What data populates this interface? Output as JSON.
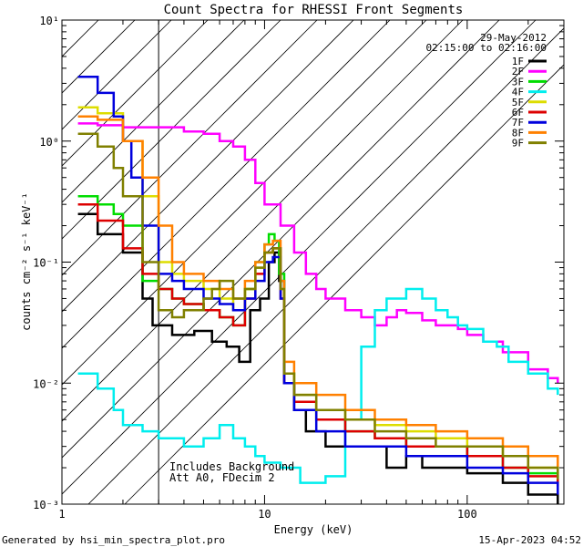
{
  "chart_data": {
    "type": "line",
    "title": "Count Spectra for RHESSI Front Segments",
    "xlabel": "Energy (keV)",
    "ylabel": "counts cm⁻² s⁻¹ keV⁻¹",
    "xscale": "log",
    "yscale": "log",
    "xlim": [
      1,
      300
    ],
    "ylim": [
      0.001,
      10
    ],
    "xticks": [
      {
        "value": 1,
        "label": "1"
      },
      {
        "value": 10,
        "label": "10"
      },
      {
        "value": 100,
        "label": "100"
      }
    ],
    "yticks": [
      {
        "value": 10,
        "label": "10¹"
      },
      {
        "value": 1,
        "label": "10⁰"
      },
      {
        "value": 0.1,
        "label": "10⁻¹"
      },
      {
        "value": 0.01,
        "label": "10⁻²"
      },
      {
        "value": 0.001,
        "label": "10⁻³"
      }
    ],
    "date": "29-May-2012",
    "time_range": "02:15:00 to 02:16:00",
    "notes": [
      "Includes Background",
      "Att A0, FDecim 2"
    ],
    "hatched_region_upper_kev": 3,
    "footer_left": "Generated by hsi_min_spectra_plot.pro",
    "footer_right": "15-Apr-2023 04:52",
    "series": [
      {
        "name": "1F",
        "color": "#000000",
        "points": [
          [
            1.2,
            0.25
          ],
          [
            1.5,
            0.17
          ],
          [
            2.0,
            0.12
          ],
          [
            2.5,
            0.05
          ],
          [
            2.8,
            0.03
          ],
          [
            3.5,
            0.025
          ],
          [
            4.5,
            0.027
          ],
          [
            5.5,
            0.022
          ],
          [
            6.5,
            0.02
          ],
          [
            7.5,
            0.015
          ],
          [
            8.5,
            0.04
          ],
          [
            9.5,
            0.05
          ],
          [
            10.5,
            0.1
          ],
          [
            11.2,
            0.12
          ],
          [
            11.8,
            0.07
          ],
          [
            12.5,
            0.01
          ],
          [
            14,
            0.006
          ],
          [
            16,
            0.004
          ],
          [
            20,
            0.003
          ],
          [
            30,
            0.003
          ],
          [
            40,
            0.002
          ],
          [
            50,
            0.0025
          ],
          [
            60,
            0.002
          ],
          [
            80,
            0.002
          ],
          [
            100,
            0.0018
          ],
          [
            150,
            0.0015
          ],
          [
            200,
            0.0012
          ],
          [
            280,
            0.001
          ]
        ]
      },
      {
        "name": "2F",
        "color": "#ff00ff",
        "points": [
          [
            1.2,
            1.4
          ],
          [
            1.5,
            1.35
          ],
          [
            2,
            1.3
          ],
          [
            3,
            1.3
          ],
          [
            4,
            1.2
          ],
          [
            5,
            1.15
          ],
          [
            6,
            1.0
          ],
          [
            7,
            0.9
          ],
          [
            8,
            0.7
          ],
          [
            9,
            0.45
          ],
          [
            10,
            0.3
          ],
          [
            12,
            0.2
          ],
          [
            14,
            0.12
          ],
          [
            16,
            0.08
          ],
          [
            18,
            0.06
          ],
          [
            20,
            0.05
          ],
          [
            25,
            0.04
          ],
          [
            30,
            0.035
          ],
          [
            35,
            0.03
          ],
          [
            40,
            0.035
          ],
          [
            45,
            0.04
          ],
          [
            50,
            0.038
          ],
          [
            60,
            0.033
          ],
          [
            70,
            0.03
          ],
          [
            80,
            0.03
          ],
          [
            90,
            0.028
          ],
          [
            100,
            0.025
          ],
          [
            120,
            0.022
          ],
          [
            150,
            0.018
          ],
          [
            200,
            0.013
          ],
          [
            250,
            0.011
          ],
          [
            280,
            0.01
          ]
        ]
      },
      {
        "name": "3F",
        "color": "#00dd00",
        "points": [
          [
            1.2,
            0.35
          ],
          [
            1.5,
            0.3
          ],
          [
            1.8,
            0.25
          ],
          [
            2.0,
            0.2
          ],
          [
            2.5,
            0.07
          ],
          [
            3,
            0.06
          ],
          [
            3.5,
            0.05
          ],
          [
            4,
            0.045
          ],
          [
            5,
            0.04
          ],
          [
            6,
            0.035
          ],
          [
            7,
            0.03
          ],
          [
            8,
            0.06
          ],
          [
            9,
            0.1
          ],
          [
            10,
            0.14
          ],
          [
            10.5,
            0.17
          ],
          [
            11.2,
            0.15
          ],
          [
            11.8,
            0.08
          ],
          [
            12.5,
            0.012
          ],
          [
            14,
            0.007
          ],
          [
            18,
            0.005
          ],
          [
            25,
            0.004
          ],
          [
            35,
            0.0035
          ],
          [
            50,
            0.003
          ],
          [
            70,
            0.003
          ],
          [
            100,
            0.0025
          ],
          [
            150,
            0.002
          ],
          [
            200,
            0.0018
          ],
          [
            280,
            0.0015
          ]
        ]
      },
      {
        "name": "4F",
        "color": "#00eeee",
        "points": [
          [
            1.2,
            0.012
          ],
          [
            1.5,
            0.009
          ],
          [
            1.8,
            0.006
          ],
          [
            2.0,
            0.0045
          ],
          [
            2.5,
            0.004
          ],
          [
            3,
            0.0035
          ],
          [
            4,
            0.003
          ],
          [
            5,
            0.0035
          ],
          [
            6,
            0.0045
          ],
          [
            7,
            0.0035
          ],
          [
            8,
            0.003
          ],
          [
            9,
            0.0025
          ],
          [
            10,
            0.0022
          ],
          [
            12,
            0.002
          ],
          [
            15,
            0.0015
          ],
          [
            20,
            0.0017
          ],
          [
            25,
            0.005
          ],
          [
            30,
            0.02
          ],
          [
            35,
            0.04
          ],
          [
            40,
            0.05
          ],
          [
            50,
            0.06
          ],
          [
            60,
            0.05
          ],
          [
            70,
            0.04
          ],
          [
            80,
            0.035
          ],
          [
            90,
            0.03
          ],
          [
            100,
            0.028
          ],
          [
            120,
            0.022
          ],
          [
            140,
            0.02
          ],
          [
            160,
            0.015
          ],
          [
            200,
            0.012
          ],
          [
            250,
            0.009
          ],
          [
            280,
            0.008
          ]
        ]
      },
      {
        "name": "5F",
        "color": "#dddd00",
        "points": [
          [
            1.2,
            1.9
          ],
          [
            1.5,
            1.7
          ],
          [
            2,
            1.0
          ],
          [
            2.5,
            0.35
          ],
          [
            3,
            0.1
          ],
          [
            3.5,
            0.08
          ],
          [
            4,
            0.07
          ],
          [
            5,
            0.06
          ],
          [
            6,
            0.05
          ],
          [
            7,
            0.04
          ],
          [
            8,
            0.06
          ],
          [
            9,
            0.09
          ],
          [
            10,
            0.12
          ],
          [
            11,
            0.13
          ],
          [
            12,
            0.06
          ],
          [
            12.5,
            0.012
          ],
          [
            14,
            0.008
          ],
          [
            18,
            0.006
          ],
          [
            25,
            0.005
          ],
          [
            35,
            0.0045
          ],
          [
            50,
            0.004
          ],
          [
            70,
            0.0035
          ],
          [
            100,
            0.003
          ],
          [
            150,
            0.0025
          ],
          [
            200,
            0.002
          ],
          [
            280,
            0.0018
          ]
        ]
      },
      {
        "name": "6F",
        "color": "#dd0000",
        "points": [
          [
            1.2,
            0.3
          ],
          [
            1.5,
            0.22
          ],
          [
            2,
            0.13
          ],
          [
            2.5,
            0.08
          ],
          [
            3,
            0.06
          ],
          [
            3.5,
            0.05
          ],
          [
            4,
            0.045
          ],
          [
            5,
            0.04
          ],
          [
            6,
            0.035
          ],
          [
            7,
            0.03
          ],
          [
            8,
            0.05
          ],
          [
            9,
            0.08
          ],
          [
            10,
            0.12
          ],
          [
            11,
            0.13
          ],
          [
            12,
            0.05
          ],
          [
            12.5,
            0.01
          ],
          [
            14,
            0.007
          ],
          [
            18,
            0.005
          ],
          [
            25,
            0.004
          ],
          [
            35,
            0.0035
          ],
          [
            50,
            0.003
          ],
          [
            70,
            0.003
          ],
          [
            100,
            0.0025
          ],
          [
            150,
            0.002
          ],
          [
            200,
            0.0017
          ],
          [
            280,
            0.0014
          ]
        ]
      },
      {
        "name": "7F",
        "color": "#0000dd",
        "points": [
          [
            1.2,
            3.4
          ],
          [
            1.5,
            2.5
          ],
          [
            1.8,
            1.6
          ],
          [
            2.0,
            1.0
          ],
          [
            2.2,
            0.5
          ],
          [
            2.5,
            0.2
          ],
          [
            3,
            0.08
          ],
          [
            3.5,
            0.07
          ],
          [
            4,
            0.06
          ],
          [
            5,
            0.05
          ],
          [
            6,
            0.045
          ],
          [
            7,
            0.04
          ],
          [
            8,
            0.05
          ],
          [
            9,
            0.07
          ],
          [
            10,
            0.1
          ],
          [
            11,
            0.11
          ],
          [
            12,
            0.05
          ],
          [
            12.5,
            0.01
          ],
          [
            14,
            0.006
          ],
          [
            18,
            0.004
          ],
          [
            25,
            0.003
          ],
          [
            35,
            0.003
          ],
          [
            50,
            0.0025
          ],
          [
            70,
            0.0025
          ],
          [
            100,
            0.002
          ],
          [
            150,
            0.0018
          ],
          [
            200,
            0.0015
          ],
          [
            280,
            0.0012
          ]
        ]
      },
      {
        "name": "8F",
        "color": "#ff8000",
        "points": [
          [
            1.2,
            1.6
          ],
          [
            1.5,
            1.5
          ],
          [
            2,
            1.0
          ],
          [
            2.5,
            0.5
          ],
          [
            3,
            0.2
          ],
          [
            3.5,
            0.1
          ],
          [
            4,
            0.08
          ],
          [
            5,
            0.07
          ],
          [
            6,
            0.06
          ],
          [
            7,
            0.05
          ],
          [
            8,
            0.07
          ],
          [
            9,
            0.1
          ],
          [
            10,
            0.14
          ],
          [
            11,
            0.15
          ],
          [
            12,
            0.07
          ],
          [
            12.5,
            0.015
          ],
          [
            14,
            0.01
          ],
          [
            18,
            0.008
          ],
          [
            25,
            0.006
          ],
          [
            35,
            0.005
          ],
          [
            50,
            0.0045
          ],
          [
            70,
            0.004
          ],
          [
            100,
            0.0035
          ],
          [
            150,
            0.003
          ],
          [
            200,
            0.0025
          ],
          [
            280,
            0.002
          ]
        ]
      },
      {
        "name": "9F",
        "color": "#808000",
        "points": [
          [
            1.2,
            1.15
          ],
          [
            1.5,
            0.9
          ],
          [
            1.8,
            0.6
          ],
          [
            2.0,
            0.35
          ],
          [
            2.5,
            0.1
          ],
          [
            3,
            0.04
          ],
          [
            3.5,
            0.035
          ],
          [
            4,
            0.04
          ],
          [
            5,
            0.05
          ],
          [
            5.5,
            0.06
          ],
          [
            6,
            0.07
          ],
          [
            7,
            0.05
          ],
          [
            8,
            0.06
          ],
          [
            9,
            0.09
          ],
          [
            10,
            0.12
          ],
          [
            11,
            0.13
          ],
          [
            12,
            0.06
          ],
          [
            12.5,
            0.012
          ],
          [
            14,
            0.008
          ],
          [
            18,
            0.006
          ],
          [
            25,
            0.005
          ],
          [
            35,
            0.004
          ],
          [
            50,
            0.0035
          ],
          [
            70,
            0.003
          ],
          [
            100,
            0.003
          ],
          [
            150,
            0.0025
          ],
          [
            200,
            0.002
          ],
          [
            280,
            0.0016
          ]
        ]
      }
    ]
  }
}
